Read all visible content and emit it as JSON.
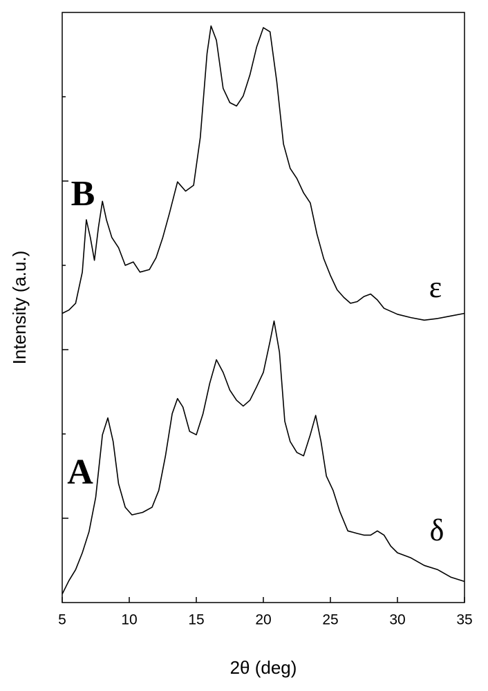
{
  "chart_data": {
    "type": "line",
    "x_label": "2θ (deg)",
    "y_label": "Intensity (a.u.)",
    "xlim": [
      5,
      35
    ],
    "xticks": [
      5,
      10,
      15,
      20,
      25,
      30,
      35
    ],
    "ylim": [
      0,
      7
    ],
    "yticks": [
      1,
      2,
      3,
      4,
      5,
      6
    ],
    "annotations": [
      "B",
      "A",
      "ε",
      "δ"
    ],
    "series": [
      {
        "color": "#000000",
        "x": [
          5,
          5.5,
          6,
          6.5,
          6.8,
          7.1,
          7.4,
          7.7,
          8.0,
          8.3,
          8.7,
          9.2,
          9.7,
          10.3,
          10.8,
          11.5,
          12,
          12.5,
          13,
          13.6,
          14.2,
          14.8,
          15.3,
          15.8,
          16.1,
          16.5,
          17,
          17.5,
          18,
          18.5,
          19,
          19.5,
          20,
          20.5,
          21,
          21.5,
          22,
          22.5,
          23,
          23.5,
          24,
          24.5,
          25,
          25.5,
          26,
          26.5,
          27,
          27.5,
          28,
          28.5,
          29,
          30,
          31,
          32,
          33,
          34,
          35
        ],
        "values": [
          3.43,
          3.47,
          3.55,
          3.92,
          4.54,
          4.33,
          4.06,
          4.45,
          4.76,
          4.54,
          4.33,
          4.21,
          4.0,
          4.04,
          3.92,
          3.95,
          4.09,
          4.33,
          4.62,
          4.99,
          4.88,
          4.95,
          5.52,
          6.51,
          6.84,
          6.67,
          6.1,
          5.93,
          5.89,
          6.01,
          6.26,
          6.59,
          6.82,
          6.77,
          6.18,
          5.44,
          5.15,
          5.03,
          4.86,
          4.74,
          4.37,
          4.08,
          3.88,
          3.71,
          3.62,
          3.55,
          3.57,
          3.63,
          3.66,
          3.59,
          3.49,
          3.42,
          3.38,
          3.35,
          3.37,
          3.4,
          3.43
        ]
      },
      {
        "color": "#000000",
        "x": [
          5,
          5.5,
          6,
          6.5,
          7,
          7.5,
          8,
          8.4,
          8.8,
          9.2,
          9.7,
          10.2,
          11,
          11.7,
          12.2,
          12.7,
          13.2,
          13.6,
          14,
          14.5,
          15,
          15.5,
          16,
          16.5,
          17,
          17.5,
          18,
          18.5,
          19,
          19.5,
          20,
          20.5,
          20.8,
          21.2,
          21.6,
          22,
          22.5,
          23,
          23.5,
          23.9,
          24.3,
          24.7,
          25.2,
          25.7,
          26.3,
          27,
          27.5,
          28,
          28.5,
          29,
          29.5,
          30,
          31,
          32,
          33,
          34,
          35
        ],
        "values": [
          0.1,
          0.26,
          0.39,
          0.59,
          0.84,
          1.25,
          1.99,
          2.19,
          1.91,
          1.41,
          1.13,
          1.04,
          1.07,
          1.13,
          1.33,
          1.74,
          2.24,
          2.42,
          2.32,
          2.03,
          1.99,
          2.24,
          2.6,
          2.88,
          2.73,
          2.52,
          2.4,
          2.33,
          2.4,
          2.56,
          2.73,
          3.1,
          3.34,
          2.97,
          2.15,
          1.91,
          1.78,
          1.74,
          1.99,
          2.22,
          1.91,
          1.5,
          1.33,
          1.08,
          0.85,
          0.82,
          0.8,
          0.8,
          0.85,
          0.8,
          0.67,
          0.59,
          0.53,
          0.44,
          0.39,
          0.3,
          0.25
        ]
      }
    ]
  }
}
